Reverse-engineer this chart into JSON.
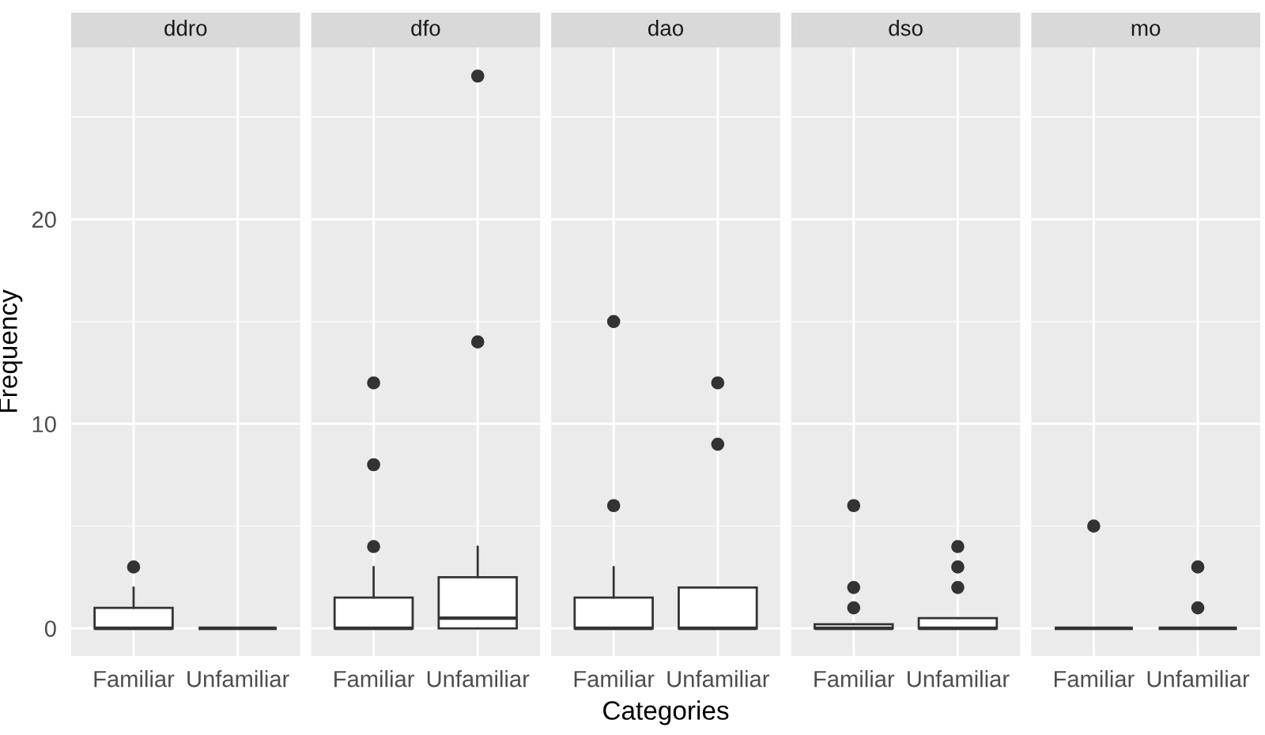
{
  "chart_data": [
    {
      "type": "box",
      "title": "ddro",
      "ylabel": "Frequency",
      "categories": [
        "Familiar",
        "Unfamiliar"
      ],
      "ylim": [
        -1.35,
        28.4
      ],
      "yticks": [
        0,
        10,
        20
      ],
      "grid": true,
      "boxes": [
        {
          "low": 0,
          "q1": 0,
          "median": 0,
          "q3": 1,
          "high": 2,
          "outliers": [
            3
          ]
        },
        {
          "low": 0,
          "q1": 0,
          "median": 0,
          "q3": 0,
          "high": 0
        }
      ]
    },
    {
      "type": "box",
      "title": "dfo",
      "categories": [
        "Familiar",
        "Unfamiliar"
      ],
      "ylim": [
        -1.35,
        28.4
      ],
      "yticks": [
        0,
        10,
        20
      ],
      "grid": true,
      "tick_labels": "x",
      "boxes": [
        {
          "low": 0,
          "q1": 0,
          "median": 0,
          "q3": 1.5,
          "high": 3,
          "outliers": [
            4,
            8,
            12
          ]
        },
        {
          "low": 0,
          "q1": 0,
          "median": 0.5,
          "q3": 2.5,
          "high": 4,
          "outliers": [
            14,
            27
          ]
        }
      ]
    },
    {
      "type": "box",
      "title": "dao",
      "xlabel": "Categories",
      "categories": [
        "Familiar",
        "Unfamiliar"
      ],
      "ylim": [
        -1.35,
        28.4
      ],
      "yticks": [
        0,
        10,
        20
      ],
      "grid": true,
      "tick_labels": "x",
      "boxes": [
        {
          "low": 0,
          "q1": 0,
          "median": 0,
          "q3": 1.5,
          "high": 3,
          "outliers": [
            6,
            15
          ]
        },
        {
          "low": 0,
          "q1": 0,
          "median": 0,
          "q3": 2,
          "high": 2,
          "outliers": [
            9,
            12
          ]
        }
      ]
    },
    {
      "type": "box",
      "title": "dso",
      "categories": [
        "Familiar",
        "Unfamiliar"
      ],
      "ylim": [
        -1.35,
        28.4
      ],
      "yticks": [
        0,
        10,
        20
      ],
      "grid": true,
      "tick_labels": "x",
      "boxes": [
        {
          "low": 0,
          "q1": 0,
          "median": 0,
          "q3": 0.2,
          "high": 0.2,
          "outliers": [
            1,
            2,
            6
          ]
        },
        {
          "low": 0,
          "q1": 0,
          "median": 0,
          "q3": 0.5,
          "high": 0.5,
          "outliers": [
            2,
            3,
            4
          ]
        }
      ]
    },
    {
      "type": "box",
      "title": "mo",
      "categories": [
        "Familiar",
        "Unfamiliar"
      ],
      "ylim": [
        -1.35,
        28.4
      ],
      "yticks": [
        0,
        10,
        20
      ],
      "grid": true,
      "tick_labels": "x",
      "boxes": [
        {
          "low": 0,
          "q1": 0,
          "median": 0,
          "q3": 0,
          "high": 0,
          "outliers": [
            5
          ]
        },
        {
          "low": 0,
          "q1": 0,
          "median": 0,
          "q3": 0,
          "high": 0,
          "outliers": [
            1,
            3
          ]
        }
      ]
    }
  ]
}
